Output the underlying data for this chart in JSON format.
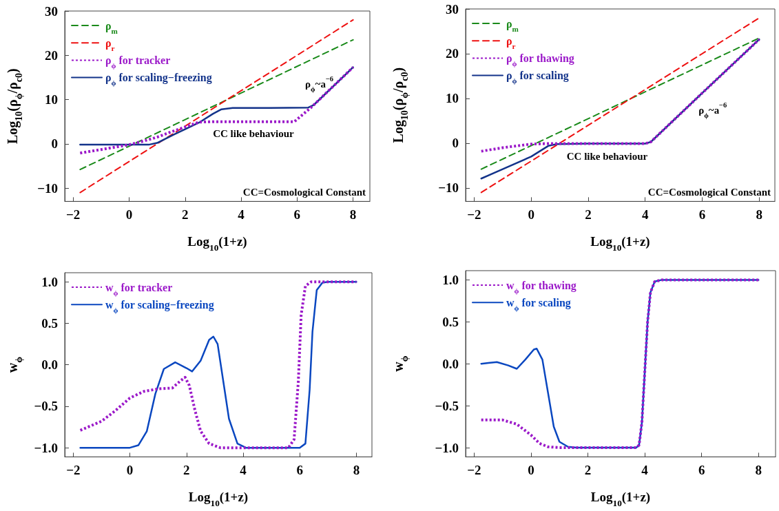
{
  "chart_data": [
    {
      "type": "line",
      "xlabel": "Log$_{10}$(1+z)",
      "ylabel": "Log$_{10}$(ρ$_{ϕ}$/ρ$_{c0}$)",
      "xlim": [
        -2.3,
        8.6
      ],
      "ylim": [
        -13,
        30
      ],
      "xticks": [
        -2,
        0,
        2,
        4,
        6,
        8
      ],
      "yticks": [
        {
          "value": -10,
          "label": "−10"
        },
        0,
        10,
        20,
        30
      ],
      "legend": "top left",
      "grid": false,
      "marker": "none",
      "series": [
        {
          "name": "ρ$_{m}$",
          "color": "#1a8a1a",
          "line_style": "dashed",
          "x": [
            -1.75,
            8
          ],
          "values": [
            -5.8,
            23.5
          ]
        },
        {
          "name": "ρ$_{r}$",
          "color": "#ee1111",
          "line_style": "dashed",
          "x": [
            -1.75,
            8
          ],
          "values": [
            -11,
            28
          ]
        },
        {
          "name": "ρ$_{ϕ}$ for tracker",
          "color": "#9b19c9",
          "line_style": "dotted",
          "x": [
            -1.75,
            -1,
            0,
            0.5,
            1,
            1.5,
            2,
            2.5,
            3,
            4,
            5,
            5.9,
            6.5,
            8
          ],
          "values": [
            -2.1,
            -1.3,
            -0.2,
            0.6,
            1.5,
            2.7,
            3.8,
            4.9,
            5,
            5,
            5,
            5,
            8.2,
            17.3
          ]
        },
        {
          "name": "ρ$_{ϕ}$ for scaling−freezing",
          "color": "#13338a",
          "line_style": "solid",
          "x": [
            -1.75,
            0,
            0.7,
            1,
            1.5,
            2,
            2.5,
            3,
            3.3,
            3.7,
            5,
            6.4,
            6.6,
            8
          ],
          "values": [
            -0.2,
            -0.2,
            -0.2,
            0.2,
            1.8,
            3.3,
            4.8,
            6.8,
            7.8,
            8.1,
            8.1,
            8.2,
            8.8,
            17.3
          ]
        }
      ],
      "annotations": [
        "CC like behaviour",
        "ρ$_{ϕ}$~a$^{−6}$",
        "CC=Cosmological Constant"
      ]
    },
    {
      "type": "line",
      "xlabel": "Log$_{10}$(1+z)",
      "ylabel": "Log$_{10}$(ρ$_{ϕ}$/ρ$_{c0}$)",
      "xlim": [
        -2.3,
        8.55
      ],
      "ylim": [
        -13,
        30
      ],
      "xticks": [
        -2,
        0,
        2,
        4,
        6,
        8
      ],
      "yticks": [
        {
          "value": -10,
          "label": "−10"
        },
        0,
        10,
        20,
        30
      ],
      "legend": "top left",
      "grid": false,
      "marker": "none",
      "series": [
        {
          "name": "ρ$_{m}$",
          "color": "#1a8a1a",
          "line_style": "dashed",
          "x": [
            -1.75,
            8
          ],
          "values": [
            -5.8,
            23.5
          ]
        },
        {
          "name": "ρ$_{r}$",
          "color": "#ee1111",
          "line_style": "dashed",
          "x": [
            -1.75,
            8
          ],
          "values": [
            -11,
            28
          ]
        },
        {
          "name": "ρ$_{ϕ}$ for thawing",
          "color": "#9b19c9",
          "line_style": "dotted",
          "x": [
            -1.75,
            -1,
            0,
            0.5,
            2,
            4,
            4.2,
            6,
            8
          ],
          "values": [
            -1.8,
            -1,
            -0.2,
            -0.1,
            -0.1,
            -0.1,
            0.3,
            11.2,
            23.2
          ]
        },
        {
          "name": "ρ$_{ϕ}$ for scaling",
          "color": "#13338a",
          "line_style": "solid",
          "x": [
            -1.75,
            -1,
            0,
            0.3,
            0.6,
            0.9,
            2,
            4,
            4.2,
            6,
            8
          ],
          "values": [
            -7.9,
            -5.8,
            -3,
            -1.8,
            -0.6,
            -0.2,
            -0.1,
            -0.1,
            0.3,
            11.2,
            23.2
          ]
        }
      ],
      "annotations": [
        "CC like behaviour",
        "ρ$_{ϕ}$~a$^{−6}$",
        "CC=Cosmological Constant"
      ]
    },
    {
      "type": "line",
      "xlabel": "Log$_{10}$(1+z)",
      "ylabel": "w$_{ϕ}$",
      "xlim": [
        -2.3,
        8.55
      ],
      "ylim": [
        -1.11,
        1.11
      ],
      "xticks": [
        -2,
        0,
        2,
        4,
        6,
        8
      ],
      "yticks": [
        {
          "value": -1,
          "label": "−1.0"
        },
        {
          "value": -0.5,
          "label": "−0.5"
        },
        {
          "value": 0,
          "label": "0.0"
        },
        {
          "value": 0.5,
          "label": "0.5"
        },
        {
          "value": 1,
          "label": "1.0"
        }
      ],
      "legend": "top left",
      "grid": false,
      "marker": "none",
      "series": [
        {
          "name": "w$_{ϕ}$ for tracker",
          "color": "#9b19c9",
          "line_style": "dotted",
          "x": [
            -1.75,
            -1,
            -0.5,
            0,
            0.5,
            1,
            1.5,
            1.8,
            1.95,
            2.1,
            2.3,
            2.5,
            2.8,
            3.2,
            5.6,
            5.8,
            5.95,
            6.05,
            6.2,
            6.4,
            8
          ],
          "values": [
            -0.79,
            -0.68,
            -0.55,
            -0.4,
            -0.32,
            -0.29,
            -0.28,
            -0.19,
            -0.15,
            -0.25,
            -0.55,
            -0.8,
            -0.95,
            -1,
            -1,
            -0.9,
            -0.2,
            0.6,
            0.95,
            1,
            1
          ]
        },
        {
          "name": "w$_{ϕ}$ for scaling−freezing",
          "color": "#0a47c0",
          "line_style": "solid",
          "x": [
            -1.75,
            0,
            0.3,
            0.6,
            0.9,
            1.2,
            1.6,
            2,
            2.2,
            2.5,
            2.8,
            2.95,
            3.1,
            3.3,
            3.5,
            3.8,
            4.1,
            6,
            6.2,
            6.35,
            6.45,
            6.6,
            6.8,
            7,
            8
          ],
          "values": [
            -1,
            -1,
            -0.97,
            -0.8,
            -0.35,
            -0.05,
            0.03,
            -0.04,
            -0.08,
            0.05,
            0.3,
            0.34,
            0.25,
            -0.2,
            -0.65,
            -0.95,
            -1,
            -1,
            -0.95,
            -0.3,
            0.4,
            0.9,
            0.99,
            1,
            1
          ]
        }
      ]
    },
    {
      "type": "line",
      "xlabel": "Log$_{10}$(1+z)",
      "ylabel": "w$_{ϕ}$",
      "xlim": [
        -2.3,
        8.6
      ],
      "ylim": [
        -1.11,
        1.11
      ],
      "xticks": [
        -2,
        0,
        2,
        4,
        6,
        8
      ],
      "yticks": [
        {
          "value": -1,
          "label": "−1.0"
        },
        {
          "value": -0.5,
          "label": "−0.5"
        },
        {
          "value": 0,
          "label": "0.0"
        },
        {
          "value": 0.5,
          "label": "0.5"
        },
        {
          "value": 1,
          "label": "1.0"
        }
      ],
      "legend": "top left",
      "grid": false,
      "marker": "none",
      "series": [
        {
          "name": "w$_{ϕ}$ for thawing",
          "color": "#9b19c9",
          "line_style": "dotted",
          "x": [
            -1.75,
            -1,
            -0.5,
            0,
            0.3,
            0.6,
            1,
            3.7,
            3.8,
            3.9,
            4,
            4.1,
            4.2,
            4.35,
            4.6,
            8
          ],
          "values": [
            -0.67,
            -0.67,
            -0.72,
            -0.85,
            -0.95,
            -0.99,
            -1,
            -1,
            -0.97,
            -0.7,
            -0.1,
            0.5,
            0.85,
            0.98,
            1,
            1
          ]
        },
        {
          "name": "w$_{ϕ}$ for scaling",
          "color": "#0a47c0",
          "line_style": "solid",
          "x": [
            -1.75,
            -1.5,
            -1.2,
            -0.8,
            -0.5,
            -0.2,
            0.1,
            0.2,
            0.4,
            0.6,
            0.8,
            1,
            1.3,
            1.6,
            3.7,
            3.8,
            3.9,
            4,
            4.1,
            4.2,
            4.35,
            4.6,
            8
          ],
          "values": [
            0,
            0.01,
            0.02,
            -0.02,
            -0.06,
            0.05,
            0.17,
            0.18,
            0.05,
            -0.35,
            -0.75,
            -0.93,
            -0.99,
            -1,
            -1,
            -0.97,
            -0.7,
            -0.1,
            0.5,
            0.85,
            0.98,
            1,
            1
          ]
        }
      ]
    }
  ]
}
